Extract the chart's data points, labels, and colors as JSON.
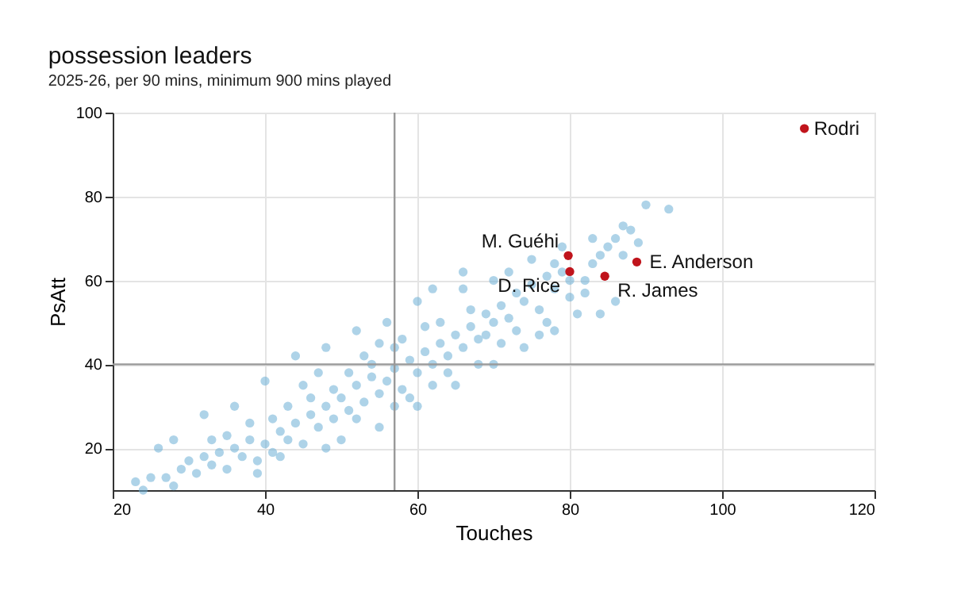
{
  "chart_data": {
    "type": "scatter",
    "title": "possession leaders",
    "subtitle": "2025-26, per 90 mins, minimum 900 mins played",
    "xlabel": "Touches",
    "ylabel": "PsAtt",
    "xlim": [
      20,
      120
    ],
    "xticks": [
      20,
      40,
      60,
      80,
      100,
      120
    ],
    "ylim": [
      10,
      100
    ],
    "yticks": [
      20,
      40,
      60,
      80,
      100
    ],
    "grid": true,
    "marker": "circle",
    "ref_lines": [
      {
        "axis": "x",
        "value": 57,
        "color": "#999999"
      },
      {
        "axis": "y",
        "value": 40,
        "color": "#999999"
      }
    ],
    "series": [
      {
        "color": "#6baed6",
        "x": [
          23,
          24,
          25,
          27,
          28,
          29,
          30,
          31,
          32,
          33,
          34,
          35,
          36,
          37,
          38,
          39,
          40,
          41,
          42,
          43,
          44,
          45,
          46,
          47,
          48,
          49,
          50,
          51,
          52,
          53,
          54,
          55,
          56,
          57,
          58,
          59,
          60,
          61,
          62,
          63,
          64,
          65,
          66,
          67,
          68,
          69,
          70,
          71,
          72,
          73,
          74,
          75,
          76,
          77,
          78,
          79,
          80,
          82,
          83,
          84,
          85,
          86,
          87,
          88,
          90,
          93,
          81,
          84,
          78,
          72,
          70,
          66,
          62,
          60,
          56,
          52,
          48,
          44,
          40,
          36,
          32,
          28,
          26,
          50,
          55,
          60,
          65,
          70,
          74,
          45,
          47,
          53,
          58,
          63,
          67,
          54,
          57,
          51,
          49,
          46,
          43,
          41,
          38,
          35,
          33,
          59,
          62,
          64,
          68,
          71,
          76,
          77,
          73,
          69,
          61,
          55,
          52,
          57,
          48,
          42,
          39,
          66,
          75,
          79,
          83,
          87,
          82,
          86,
          89,
          78,
          80
        ],
        "values": [
          12,
          10,
          13,
          13,
          11,
          15,
          17,
          14,
          18,
          16,
          19,
          15,
          20,
          18,
          22,
          17,
          21,
          19,
          24,
          22,
          26,
          21,
          28,
          25,
          30,
          27,
          32,
          29,
          35,
          31,
          37,
          33,
          36,
          39,
          34,
          41,
          38,
          43,
          40,
          45,
          42,
          47,
          44,
          49,
          46,
          52,
          50,
          54,
          51,
          57,
          55,
          59,
          53,
          61,
          58,
          62,
          56,
          60,
          64,
          66,
          68,
          70,
          73,
          72,
          78,
          77,
          52,
          52,
          48,
          62,
          60,
          58,
          58,
          55,
          50,
          48,
          44,
          42,
          36,
          30,
          28,
          22,
          20,
          22,
          25,
          30,
          35,
          40,
          44,
          35,
          38,
          42,
          46,
          50,
          53,
          40,
          44,
          38,
          34,
          32,
          30,
          27,
          26,
          23,
          22,
          32,
          35,
          38,
          40,
          45,
          47,
          50,
          48,
          47,
          49,
          45,
          27,
          30,
          20,
          18,
          14,
          62,
          65,
          68,
          70,
          66,
          57,
          55,
          69,
          64,
          60
        ]
      },
      {
        "color": "#c0141c",
        "x": [
          110.8,
          79.8,
          80,
          84.6,
          88.8
        ],
        "values": [
          96.2,
          65.9,
          62.1,
          61,
          64.4
        ]
      }
    ],
    "annotations": [
      {
        "text": "Rodri",
        "x": 110.8,
        "y": 96.2
      },
      {
        "text": "M. Guéhi",
        "x": 79.8,
        "y": 65.9
      },
      {
        "text": "D. Rice",
        "x": 80,
        "y": 62.1
      },
      {
        "text": "R. James",
        "x": 84.6,
        "y": 61
      },
      {
        "text": "E. Anderson",
        "x": 88.8,
        "y": 64.4
      }
    ]
  }
}
